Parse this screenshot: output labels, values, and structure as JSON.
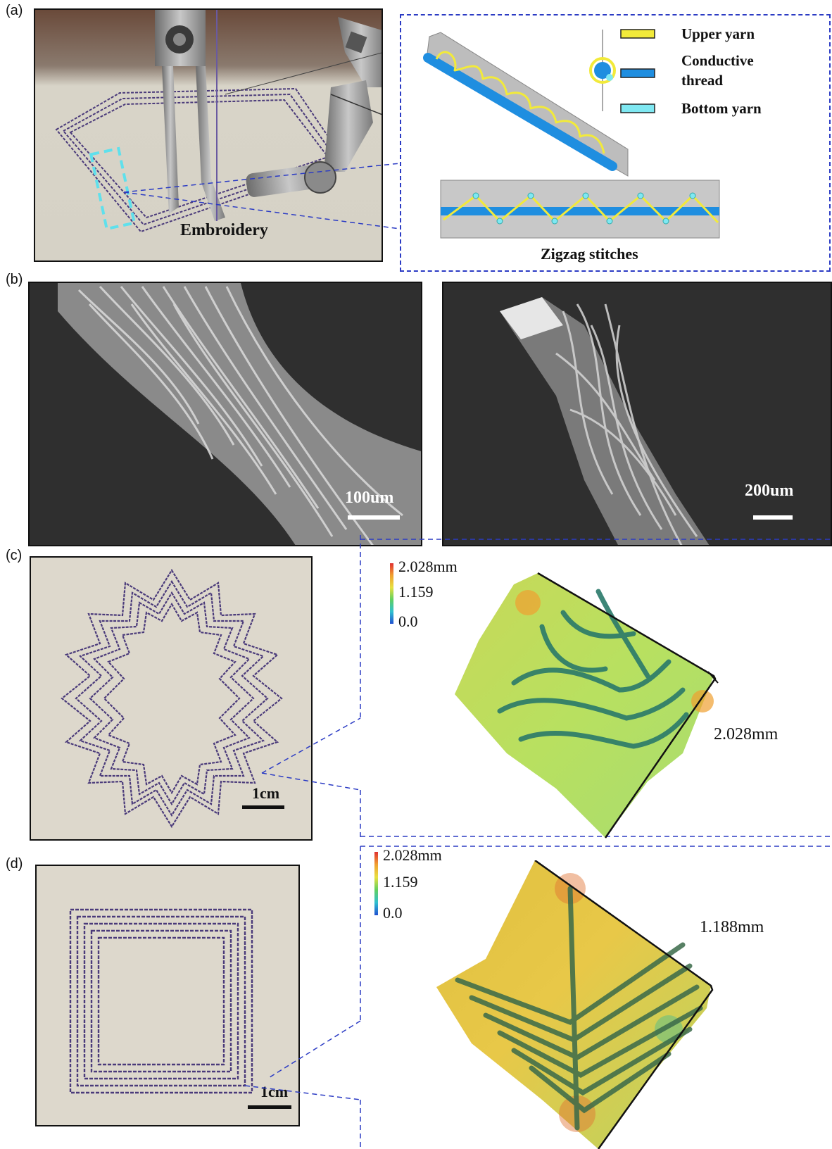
{
  "panels": {
    "a": {
      "label": "(a)",
      "photo_caption": "Embroidery",
      "legend": [
        {
          "label": "Upper yarn",
          "color": "#f2ea3a"
        },
        {
          "label": "Conductive thread",
          "line1": "Conductive",
          "line2": "thread",
          "color": "#1f8ee0"
        },
        {
          "label": "Bottom yarn",
          "color": "#7fe8f2"
        }
      ],
      "diagram_caption": "Zigzag stitches"
    },
    "b": {
      "label": "(b)",
      "left_scale": "100um",
      "right_scale": "200um"
    },
    "c": {
      "label": "(c)",
      "scale": "1cm",
      "colorbar": {
        "max": "2.028mm",
        "mid": "1.159",
        "min": "0.0"
      },
      "height_label": "2.028mm"
    },
    "d": {
      "label": "(d)",
      "scale": "1cm",
      "colorbar": {
        "max": "2.028mm",
        "mid": "1.159",
        "min": "0.0"
      },
      "height_label": "1.188mm"
    }
  },
  "colors": {
    "dash_blue": "#2b3bc4",
    "fabric": "#ddd8cc",
    "stitch_purple": "#4a3a7a",
    "sem_background": "#2e2e2e"
  }
}
